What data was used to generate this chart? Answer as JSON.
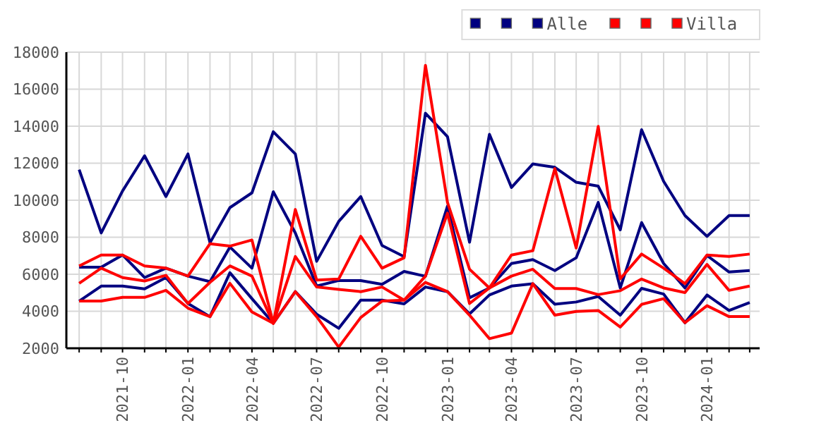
{
  "chart_data": {
    "type": "line",
    "x": [
      "2021-08",
      "2021-09",
      "2021-10",
      "2021-11",
      "2021-12",
      "2022-01",
      "2022-02",
      "2022-03",
      "2022-04",
      "2022-05",
      "2022-06",
      "2022-07",
      "2022-08",
      "2022-09",
      "2022-10",
      "2022-11",
      "2022-12",
      "2023-01",
      "2023-02",
      "2023-03",
      "2023-04",
      "2023-05",
      "2023-06",
      "2023-07",
      "2023-08",
      "2023-09",
      "2023-10",
      "2023-11",
      "2023-12",
      "2024-01",
      "2024-02",
      "2024-03"
    ],
    "series": [
      {
        "color": "#000080",
        "values": [
          11650,
          8230,
          10500,
          12400,
          10200,
          12500,
          7700,
          9600,
          10400,
          13700,
          12500,
          6700,
          8850,
          10200,
          7550,
          6950,
          14700,
          13430,
          7730,
          13560,
          10690,
          11960,
          11780,
          10970,
          10760,
          8400,
          13810,
          11020,
          9170,
          8050,
          9170,
          9170
        ]
      },
      {
        "color": "#000080",
        "values": [
          6380,
          6380,
          7040,
          5820,
          6330,
          5900,
          5600,
          7470,
          6330,
          10460,
          8230,
          5360,
          5660,
          5660,
          5460,
          6150,
          5890,
          9680,
          4730,
          5260,
          6580,
          6790,
          6200,
          6890,
          9880,
          5260,
          8790,
          6580,
          5260,
          7010,
          6120,
          6200
        ]
      },
      {
        "name": "Alle",
        "color": "#000080",
        "values": [
          4550,
          5360,
          5360,
          5210,
          5820,
          4420,
          3710,
          6080,
          4680,
          3350,
          5060,
          3840,
          3080,
          4600,
          4600,
          4400,
          5310,
          5060,
          3860,
          4880,
          5360,
          5490,
          4380,
          4500,
          4800,
          3790,
          5240,
          4930,
          3380,
          4880,
          4040,
          4470
        ]
      },
      {
        "color": "#ff0000",
        "values": [
          6450,
          7040,
          7040,
          6450,
          6330,
          5900,
          7650,
          7520,
          7850,
          3350,
          9500,
          5690,
          5740,
          8050,
          6330,
          6890,
          17290,
          9880,
          6270,
          5260,
          7040,
          7270,
          11710,
          7420,
          13990,
          5750,
          7090,
          6330,
          5490,
          7040,
          6960,
          7090
        ]
      },
      {
        "color": "#ff0000",
        "values": [
          5510,
          6330,
          5820,
          5640,
          5940,
          4420,
          5560,
          6450,
          5900,
          3350,
          6960,
          5310,
          5180,
          5060,
          5310,
          4600,
          5900,
          9300,
          4420,
          5260,
          5900,
          6270,
          5230,
          5230,
          4900,
          5110,
          5740,
          5260,
          5010,
          6530,
          5130,
          5360
        ]
      },
      {
        "name": "Villa",
        "color": "#ff0000",
        "values": [
          4550,
          4550,
          4750,
          4750,
          5130,
          4170,
          3710,
          5510,
          3960,
          3350,
          5060,
          3710,
          2060,
          3660,
          4550,
          4600,
          5560,
          5060,
          3790,
          2520,
          2820,
          5490,
          3790,
          3990,
          4040,
          3150,
          4370,
          4680,
          3380,
          4300,
          3710,
          3710
        ]
      }
    ],
    "xlim": [
      "2021-07-14",
      "2024-03-15"
    ],
    "xticks": [
      {
        "value": "2021-08",
        "label": null
      },
      {
        "value": "2021-09",
        "label": null
      },
      "2021-10",
      {
        "value": "2021-11",
        "label": null
      },
      {
        "value": "2021-12",
        "label": null
      },
      "2022-01",
      {
        "value": "2022-02",
        "label": null
      },
      {
        "value": "2022-03",
        "label": null
      },
      "2022-04",
      {
        "value": "2022-05",
        "label": null
      },
      {
        "value": "2022-06",
        "label": null
      },
      "2022-07",
      {
        "value": "2022-08",
        "label": null
      },
      {
        "value": "2022-09",
        "label": null
      },
      "2022-10",
      {
        "value": "2022-11",
        "label": null
      },
      {
        "value": "2022-12",
        "label": null
      },
      "2023-01",
      {
        "value": "2023-02",
        "label": null
      },
      {
        "value": "2023-03",
        "label": null
      },
      "2023-04",
      {
        "value": "2023-05",
        "label": null
      },
      {
        "value": "2023-06",
        "label": null
      },
      "2023-07",
      {
        "value": "2023-08",
        "label": null
      },
      {
        "value": "2023-09",
        "label": null
      },
      "2023-10",
      {
        "value": "2023-11",
        "label": null
      },
      {
        "value": "2023-12",
        "label": null
      },
      "2024-01",
      {
        "value": "2024-02",
        "label": null
      },
      {
        "value": "2024-03",
        "label": null
      }
    ],
    "ylim": [
      2000,
      18000
    ],
    "yticks": [
      2000,
      4000,
      6000,
      8000,
      10000,
      12000,
      14000,
      16000,
      18000
    ],
    "grid": true,
    "legend": "top right",
    "marker": "none",
    "line_style": "solid"
  }
}
